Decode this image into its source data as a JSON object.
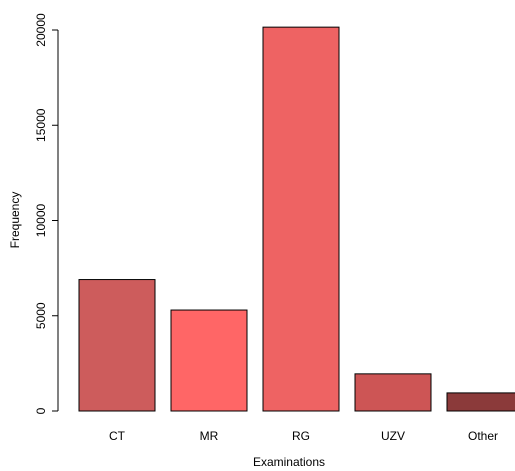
{
  "chart_data": {
    "type": "bar",
    "x_label": "Examinations",
    "y_label": "Frequency",
    "categories": [
      "CT",
      "MR",
      "RG",
      "UZV",
      "Other"
    ],
    "values": [
      6900,
      5300,
      20150,
      1950,
      950
    ],
    "colors": [
      "#cd5c5c",
      "#ff6666",
      "#ee6363",
      "#cd5555",
      "#8b3a3a"
    ],
    "ylim": [
      0,
      20000
    ],
    "yticks": [
      0,
      5000,
      10000,
      15000,
      20000
    ]
  }
}
